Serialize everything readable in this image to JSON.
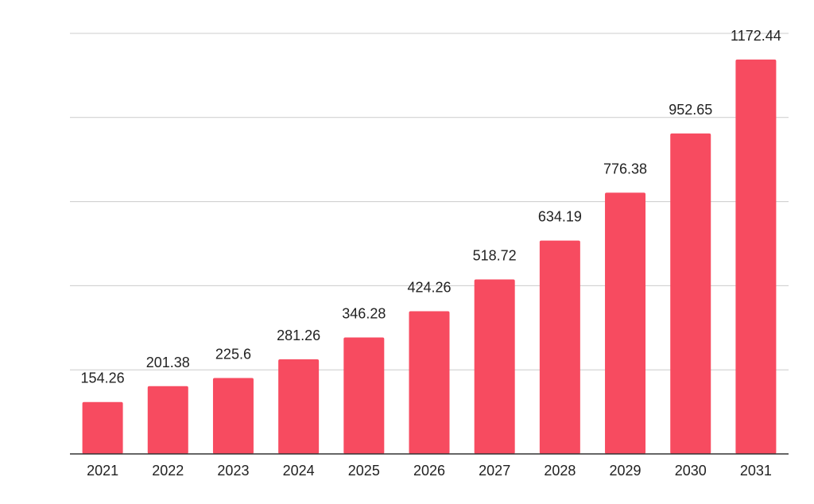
{
  "chart_data": {
    "type": "bar",
    "title": "",
    "xlabel": "",
    "ylabel": "",
    "categories": [
      "2021",
      "2022",
      "2023",
      "2024",
      "2025",
      "2026",
      "2027",
      "2028",
      "2029",
      "2030",
      "2031"
    ],
    "values": [
      154.26,
      201.38,
      225.6,
      281.26,
      346.28,
      424.26,
      518.72,
      634.19,
      776.38,
      952.65,
      1172.44
    ],
    "value_labels": [
      "154.26",
      "201.38",
      "225.6",
      "281.26",
      "346.28",
      "424.26",
      "518.72",
      "634.19",
      "776.38",
      "952.65",
      "1172.44"
    ],
    "ylim": [
      0,
      1250
    ],
    "yticks": [
      0,
      250,
      500,
      750,
      1000,
      1250
    ],
    "y_tick_labels_visible": false,
    "grid": true,
    "legend": "none",
    "colors": {
      "bar": "#f74b60",
      "grid": "#cccccc",
      "axis": "#333333",
      "text": "#222222"
    }
  }
}
